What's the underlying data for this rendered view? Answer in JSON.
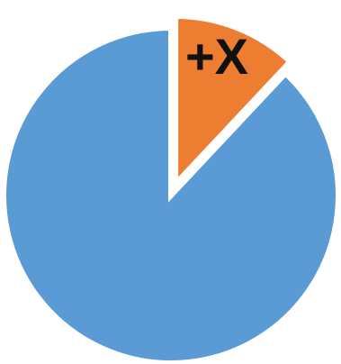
{
  "chart_data": {
    "type": "pie",
    "slices": [
      {
        "value": 88,
        "color": "#5b9bd5"
      },
      {
        "value": 12,
        "color": "#ed7d31",
        "exploded": true
      }
    ],
    "annotations": [
      {
        "text": "+X",
        "slice": 1
      }
    ],
    "title": "",
    "legend": "none"
  }
}
